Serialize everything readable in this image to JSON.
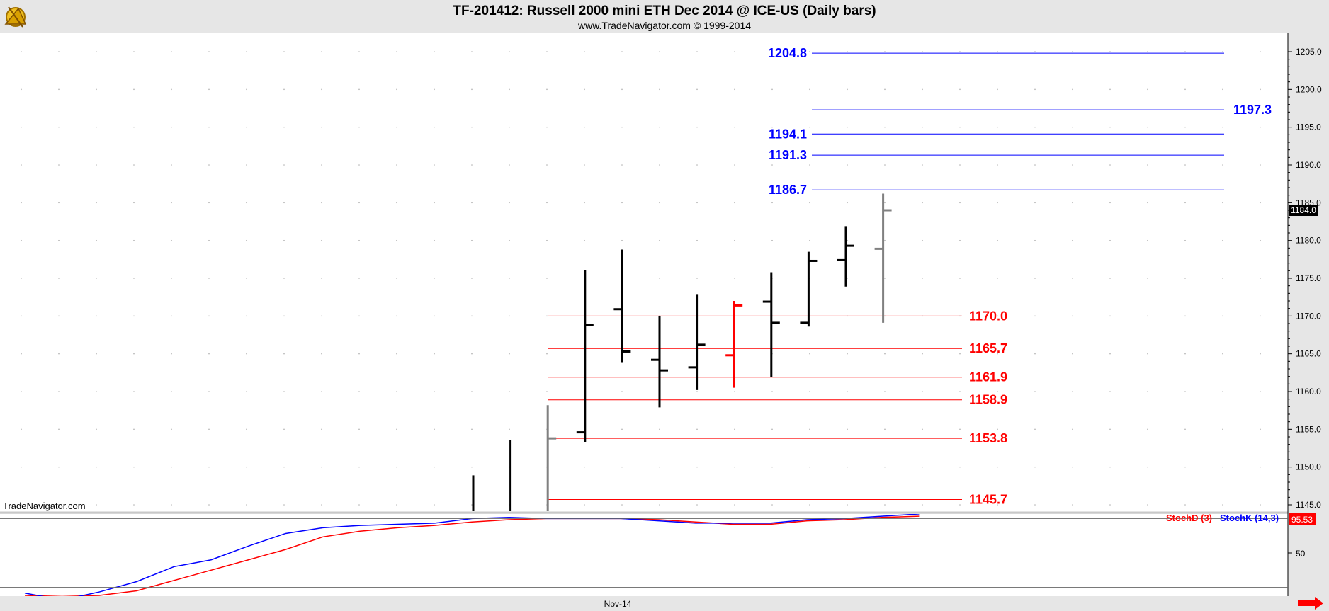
{
  "header": {
    "title": "TF-201412:  Russell 2000 mini ETH Dec 2014 @ ICE-US  (Daily bars)",
    "subtitle": "www.TradeNavigator.com © 1999-2014",
    "watermark": "TradeNavigator.com",
    "logo_icon": "sextant-logo-icon"
  },
  "colors": {
    "background": "#ffffff",
    "frame": "#e6e6e6",
    "bar": "#000000",
    "bar_down": "#ff0000",
    "bar_last": "#808080",
    "level_red": "#ff0000",
    "level_blue": "#0000ff",
    "stoch_d": "#ff0000",
    "stoch_k": "#0000ff",
    "last_price_bg": "#000000",
    "stoch_last_bg": "#ff0000"
  },
  "chart_data": [
    {
      "type": "bar",
      "subtype": "ohlc",
      "title": "TF-201412:  Russell 2000 mini ETH Dec 2014 @ ICE-US  (Daily bars)",
      "xlabel": "",
      "ylabel": "",
      "x_tick_label": "Nov-14",
      "ylim": [
        1143.0,
        1208.0
      ],
      "y_ticks": [
        "1145.0",
        "1150.0",
        "1155.0",
        "1160.0",
        "1165.0",
        "1170.0",
        "1175.0",
        "1180.0",
        "1185.0",
        "1190.0",
        "1195.0",
        "1200.0",
        "1205.0"
      ],
      "grid": true,
      "last_price_label": "1184.0",
      "bars": [
        {
          "open": null,
          "high": 1148.9,
          "low": 1143.0,
          "close": null,
          "color": "black"
        },
        {
          "open": null,
          "high": 1153.6,
          "low": 1143.0,
          "close": null,
          "color": "black"
        },
        {
          "open": null,
          "high": 1158.2,
          "low": 1143.0,
          "close": 1153.8,
          "color": "gray"
        },
        {
          "open": 1154.6,
          "high": 1176.1,
          "low": 1153.3,
          "close": 1168.8,
          "color": "black"
        },
        {
          "open": 1170.9,
          "high": 1178.8,
          "low": 1163.8,
          "close": 1165.3,
          "color": "black"
        },
        {
          "open": 1164.2,
          "high": 1170.0,
          "low": 1157.9,
          "close": 1162.8,
          "color": "black"
        },
        {
          "open": 1163.2,
          "high": 1172.9,
          "low": 1160.2,
          "close": 1166.2,
          "color": "black"
        },
        {
          "open": 1164.8,
          "high": 1172.0,
          "low": 1160.5,
          "close": 1171.4,
          "color": "red"
        },
        {
          "open": 1171.9,
          "high": 1175.8,
          "low": 1161.9,
          "close": 1169.1,
          "color": "black"
        },
        {
          "open": 1169.1,
          "high": 1178.5,
          "low": 1168.6,
          "close": 1177.3,
          "color": "black"
        },
        {
          "open": 1177.4,
          "high": 1181.9,
          "low": 1173.9,
          "close": 1179.3,
          "color": "black"
        },
        {
          "open": 1178.9,
          "high": 1186.2,
          "low": 1169.1,
          "close": 1184.0,
          "color": "gray"
        }
      ],
      "levels": [
        {
          "value": 1204.8,
          "label": "1204.8",
          "color": "blue",
          "label_side": "left"
        },
        {
          "value": 1197.3,
          "label": "1197.3",
          "color": "blue",
          "label_side": "right"
        },
        {
          "value": 1194.1,
          "label": "1194.1",
          "color": "blue",
          "label_side": "left"
        },
        {
          "value": 1191.3,
          "label": "1191.3",
          "color": "blue",
          "label_side": "left"
        },
        {
          "value": 1186.7,
          "label": "1186.7",
          "color": "blue",
          "label_side": "left"
        },
        {
          "value": 1170.0,
          "label": "1170.0",
          "color": "red",
          "label_side": "right"
        },
        {
          "value": 1165.7,
          "label": "1165.7",
          "color": "red",
          "label_side": "right"
        },
        {
          "value": 1161.9,
          "label": "1161.9",
          "color": "red",
          "label_side": "right"
        },
        {
          "value": 1158.9,
          "label": "1158.9",
          "color": "red",
          "label_side": "right"
        },
        {
          "value": 1153.8,
          "label": "1153.8",
          "color": "red",
          "label_side": "right"
        },
        {
          "value": 1145.7,
          "label": "1145.7",
          "color": "red",
          "label_side": "right"
        }
      ]
    },
    {
      "type": "line",
      "title": "",
      "ylim": [
        0,
        100
      ],
      "y_ticks": [
        "50"
      ],
      "reference_lines": [
        80,
        20
      ],
      "last_value_label": "95.53",
      "legend": [
        "StochD (3)",
        "StochK (14,3)"
      ],
      "legend_position": "top-right",
      "x": [
        -13,
        -12,
        -11,
        -10,
        -9,
        -8,
        -7,
        -6,
        -5,
        -4,
        -3,
        -2,
        -1,
        0,
        1,
        2,
        3,
        4,
        5,
        6,
        7,
        8,
        9,
        10,
        11
      ],
      "series": [
        {
          "name": "StochK (14,3)",
          "color": "blue",
          "values": [
            15,
            9,
            16,
            25,
            38,
            44,
            56,
            67,
            72,
            74,
            75,
            76,
            80,
            81,
            80,
            80,
            80,
            78,
            76,
            76,
            76,
            79,
            80,
            82,
            84
          ]
        },
        {
          "name": "StochD (3)",
          "color": "red",
          "values": [
            13,
            12,
            13,
            17,
            26,
            35,
            44,
            53,
            64,
            69,
            72,
            74,
            77,
            79,
            80,
            80,
            80,
            79,
            77,
            75,
            75,
            78,
            79,
            81,
            82
          ]
        }
      ]
    }
  ]
}
